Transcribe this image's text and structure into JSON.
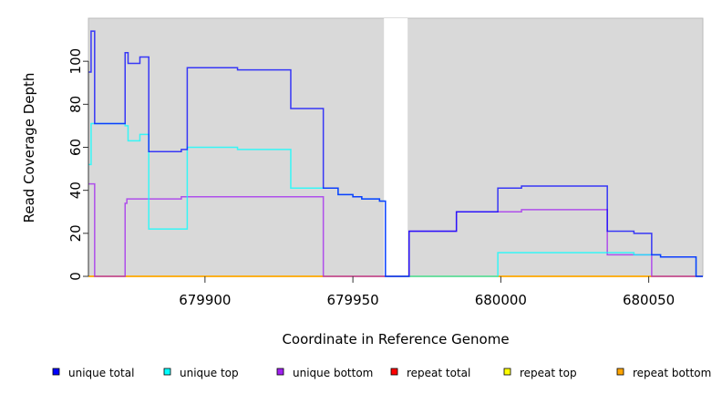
{
  "chart_data": {
    "type": "line",
    "step": true,
    "title": "",
    "xlabel": "Coordinate in Reference Genome",
    "ylabel": "Read Coverage Depth",
    "xlim": [
      679860.6,
      680068.3
    ],
    "ylim": [
      0,
      120
    ],
    "xticks": [
      679900,
      679950,
      680000,
      680050
    ],
    "xtick_labels": [
      "679900",
      "679950",
      "680000",
      "680050"
    ],
    "yticks": [
      0,
      20,
      40,
      60,
      80,
      100
    ],
    "ytick_labels": [
      "0",
      "20",
      "40",
      "60",
      "80",
      "100"
    ],
    "background": "#d9d9d9",
    "uncovered_region": [
      679960.5,
      679968.5
    ],
    "legend_placement": "bottom",
    "series": [
      {
        "name": "unique bottom",
        "color": "#a020f0",
        "steps": [
          [
            679860.6,
            43
          ],
          [
            679862.7,
            0
          ],
          [
            679873,
            34
          ],
          [
            679873.6,
            36
          ],
          [
            679892,
            37
          ],
          [
            679940,
            0
          ],
          [
            679969,
            21
          ],
          [
            679985,
            30
          ],
          [
            679999,
            30
          ],
          [
            680007,
            31
          ],
          [
            680036,
            10
          ],
          [
            680051,
            0
          ],
          [
            680068.3,
            0
          ]
        ]
      },
      {
        "name": "unique top",
        "color": "#00ffff",
        "steps": [
          [
            679860.6,
            52
          ],
          [
            679861.5,
            71
          ],
          [
            679873,
            70
          ],
          [
            679874,
            63
          ],
          [
            679878,
            66
          ],
          [
            679881,
            22
          ],
          [
            679894,
            60
          ],
          [
            679911,
            59
          ],
          [
            679929,
            41
          ],
          [
            679945,
            38
          ],
          [
            679950,
            37
          ],
          [
            679953,
            36
          ],
          [
            679959,
            35
          ],
          [
            679961,
            0
          ],
          [
            679999,
            11
          ],
          [
            680045,
            10
          ],
          [
            680054,
            9
          ],
          [
            680066,
            0
          ],
          [
            680068.3,
            0
          ]
        ]
      },
      {
        "name": "unique total",
        "color": "#0000ff",
        "steps": [
          [
            679860.6,
            95
          ],
          [
            679861.5,
            114
          ],
          [
            679862.7,
            71
          ],
          [
            679873,
            104
          ],
          [
            679874,
            99
          ],
          [
            679878,
            102
          ],
          [
            679881,
            58
          ],
          [
            679892,
            59
          ],
          [
            679894,
            97
          ],
          [
            679911,
            96
          ],
          [
            679929,
            78
          ],
          [
            679940,
            41
          ],
          [
            679945,
            38
          ],
          [
            679950,
            37
          ],
          [
            679953,
            36
          ],
          [
            679959,
            35
          ],
          [
            679961,
            0
          ],
          [
            679969,
            21
          ],
          [
            679985,
            30
          ],
          [
            679999,
            41
          ],
          [
            680007,
            42
          ],
          [
            680036,
            21
          ],
          [
            680045,
            20
          ],
          [
            680051,
            10
          ],
          [
            680054,
            9
          ],
          [
            680066,
            0
          ],
          [
            680068.3,
            0
          ]
        ]
      },
      {
        "name": "repeat total",
        "color": "#ff0000",
        "steps": [
          [
            679860.6,
            0
          ],
          [
            680068.3,
            0
          ]
        ]
      },
      {
        "name": "repeat top",
        "color": "#ffff00",
        "steps": [
          [
            679860.6,
            0
          ],
          [
            680068.3,
            0
          ]
        ]
      },
      {
        "name": "repeat bottom",
        "color": "#ffa500",
        "steps": [
          [
            679860.6,
            0
          ],
          [
            680068.3,
            0
          ]
        ]
      }
    ],
    "legend": [
      {
        "label": "unique total",
        "color": "#0000ff"
      },
      {
        "label": "unique top",
        "color": "#00ffff"
      },
      {
        "label": "unique bottom",
        "color": "#a020f0"
      },
      {
        "label": "repeat total",
        "color": "#ff0000"
      },
      {
        "label": "repeat top",
        "color": "#ffff00"
      },
      {
        "label": "repeat bottom",
        "color": "#ffa500"
      }
    ]
  }
}
